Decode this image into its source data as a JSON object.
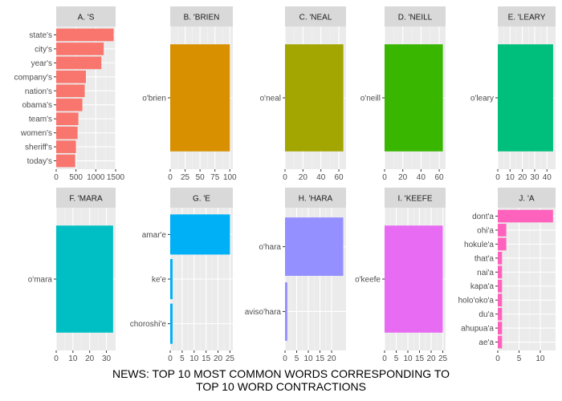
{
  "caption": {
    "line1": "NEWS: TOP 10 MOST COMMON WORDS CORRESPONDING TO",
    "line2": "TOP 10 WORD CONTRACTIONS"
  },
  "chart_data": [
    {
      "type": "bar",
      "orientation": "horizontal",
      "title": "A. 'S",
      "color": "#F8766D",
      "categories": [
        "state's",
        "city's",
        "year's",
        "company's",
        "nation's",
        "obama's",
        "team's",
        "women's",
        "sheriff's",
        "today's"
      ],
      "values": [
        1450,
        1200,
        1140,
        750,
        720,
        660,
        560,
        540,
        500,
        480
      ],
      "xlim": [
        0,
        1500
      ],
      "xticks": [
        0,
        500,
        1000,
        1500
      ],
      "xtick_labels": [
        "0",
        "500",
        "1000",
        "1500"
      ]
    },
    {
      "type": "bar",
      "orientation": "horizontal",
      "title": "B. 'BRIEN",
      "color": "#D89000",
      "categories": [
        "o'brien"
      ],
      "values": [
        100
      ],
      "xlim": [
        0,
        105
      ],
      "xticks": [
        0,
        25,
        50,
        75,
        100
      ],
      "xtick_labels": [
        "0",
        "25",
        "50",
        "75",
        "100"
      ]
    },
    {
      "type": "bar",
      "orientation": "horizontal",
      "title": "C. 'NEAL",
      "color": "#A3A500",
      "categories": [
        "o'neal"
      ],
      "values": [
        65
      ],
      "xlim": [
        0,
        68
      ],
      "xticks": [
        0,
        20,
        40,
        60
      ],
      "xtick_labels": [
        "0",
        "20",
        "40",
        "60"
      ]
    },
    {
      "type": "bar",
      "orientation": "horizontal",
      "title": "D. 'NEILL",
      "color": "#39B600",
      "categories": [
        "o'neill"
      ],
      "values": [
        64
      ],
      "xlim": [
        0,
        67
      ],
      "xticks": [
        0,
        20,
        40,
        60
      ],
      "xtick_labels": [
        "0",
        "20",
        "40",
        "60"
      ]
    },
    {
      "type": "bar",
      "orientation": "horizontal",
      "title": "E. 'LEARY",
      "color": "#00BF7D",
      "categories": [
        "o'leary"
      ],
      "values": [
        45
      ],
      "xlim": [
        0,
        47
      ],
      "xticks": [
        0,
        10,
        20,
        30,
        40
      ],
      "xtick_labels": [
        "0",
        "10",
        "20",
        "30",
        "40"
      ]
    },
    {
      "type": "bar",
      "orientation": "horizontal",
      "title": "F. 'MARA",
      "color": "#00BFC4",
      "categories": [
        "o'mara"
      ],
      "values": [
        34
      ],
      "xlim": [
        0,
        35.5
      ],
      "xticks": [
        0,
        10,
        20,
        30
      ],
      "xtick_labels": [
        "0",
        "10",
        "20",
        "30"
      ]
    },
    {
      "type": "bar",
      "orientation": "horizontal",
      "title": "G. 'E",
      "color": "#00B0F6",
      "categories": [
        "amar'e",
        "ke'e",
        "choroshi'e"
      ],
      "values": [
        25,
        1,
        1
      ],
      "xlim": [
        0,
        26.2
      ],
      "xticks": [
        0,
        5,
        10,
        15,
        20,
        25
      ],
      "xtick_labels": [
        "0",
        "5",
        "10",
        "15",
        "20",
        "25"
      ]
    },
    {
      "type": "bar",
      "orientation": "horizontal",
      "title": "H. 'HARA",
      "color": "#9590FF",
      "categories": [
        "o'hara",
        "aviso'hara"
      ],
      "values": [
        25,
        1
      ],
      "xlim": [
        0,
        26.2
      ],
      "xticks": [
        0,
        5,
        10,
        15,
        20
      ],
      "xtick_labels": [
        "0",
        "5",
        "10",
        "15",
        "20"
      ]
    },
    {
      "type": "bar",
      "orientation": "horizontal",
      "title": "I. 'KEEFE",
      "color": "#E76BF3",
      "categories": [
        "o'keefe"
      ],
      "values": [
        25
      ],
      "xlim": [
        0,
        26.2
      ],
      "xticks": [
        0,
        5,
        10,
        15,
        20,
        25
      ],
      "xtick_labels": [
        "0",
        "5",
        "10",
        "15",
        "20",
        "25"
      ]
    },
    {
      "type": "bar",
      "orientation": "horizontal",
      "title": "J. 'A",
      "color": "#FF62BC",
      "categories": [
        "dont'a",
        "ohi'a",
        "hokule'a",
        "that'a",
        "nai'a",
        "kapa'a",
        "holo'oko'a",
        "du'a",
        "ahupua'a",
        "ae'a"
      ],
      "values": [
        13,
        2,
        2,
        1,
        1,
        1,
        1,
        1,
        1,
        1
      ],
      "xlim": [
        0,
        13.6
      ],
      "xticks": [
        0,
        5,
        10
      ],
      "xtick_labels": [
        "0",
        "5",
        "10"
      ]
    }
  ]
}
